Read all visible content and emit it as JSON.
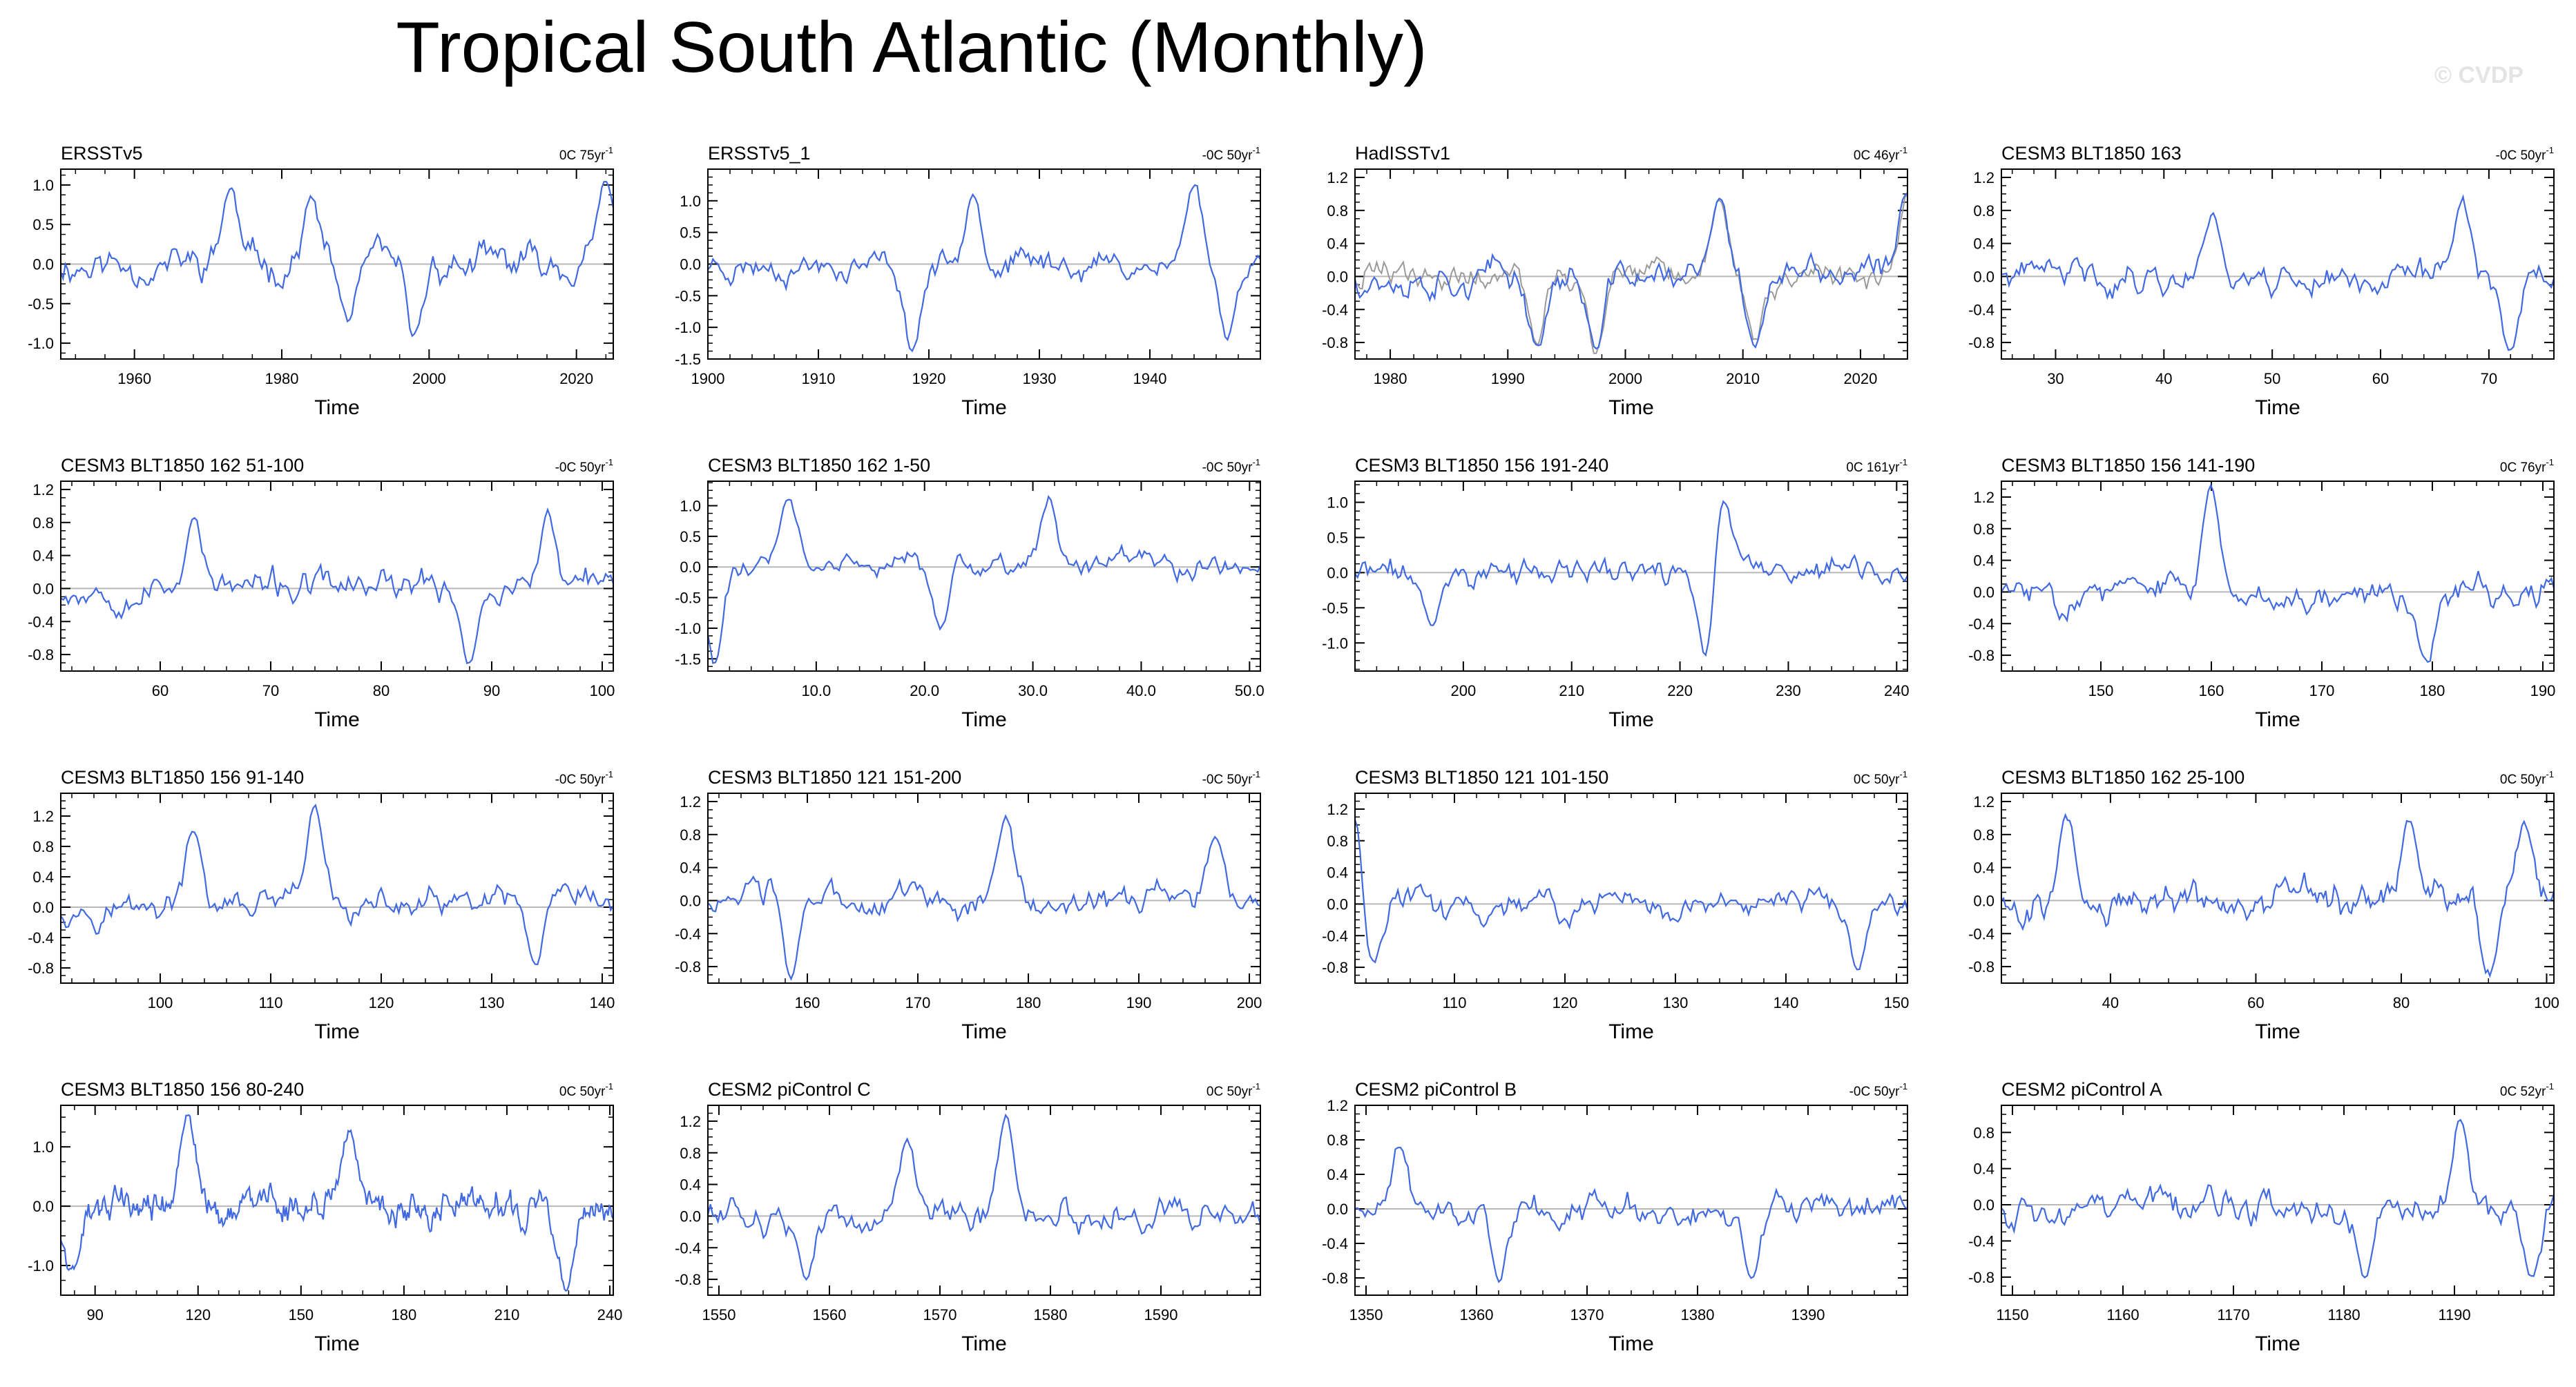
{
  "page": {
    "title": "Tropical South Atlantic (Monthly)",
    "watermark": "© CVDP"
  },
  "colors": {
    "line": "#4169e1",
    "obs_overlay": "#9a9a9a",
    "axis": "#000000",
    "zero_line": "#b8b8b8"
  },
  "chart_data": [
    {
      "type": "line",
      "title": "ERSSTv5",
      "trend": "0C 75yr",
      "xlabel": "Time",
      "xlim": [
        1950,
        2025
      ],
      "ylim": [
        -1.2,
        1.2
      ],
      "xticks": [
        1960,
        1980,
        2000,
        2020
      ],
      "yticks": [
        -1.0,
        -0.5,
        0.0,
        0.5,
        1.0
      ],
      "ytick_labels": [
        "-1.0",
        "-0.5",
        "0.0",
        "0.5",
        "1.0"
      ],
      "amplitude": 0.4,
      "points": 240,
      "seed": 11,
      "features": [
        [
          1973,
          0.95
        ],
        [
          1984,
          0.8
        ],
        [
          1989,
          -0.7
        ],
        [
          1998,
          -0.95
        ],
        [
          2024,
          1.0
        ]
      ]
    },
    {
      "type": "line",
      "title": "ERSSTv5_1",
      "trend": "-0C 50yr",
      "xlabel": "Time",
      "xlim": [
        1900,
        1950
      ],
      "ylim": [
        -1.5,
        1.5
      ],
      "xticks": [
        1900,
        1910,
        1920,
        1930,
        1940
      ],
      "yticks": [
        -1.5,
        -1.0,
        -0.5,
        0.0,
        0.5,
        1.0
      ],
      "ytick_labels": [
        "-1.5",
        "-1.0",
        "-0.5",
        "0.0",
        "0.5",
        "1.0"
      ],
      "amplitude": 0.4,
      "points": 220,
      "seed": 23,
      "features": [
        [
          1918.5,
          -1.35
        ],
        [
          1924,
          1.25
        ],
        [
          1944,
          1.3
        ],
        [
          1947,
          -1.1
        ]
      ]
    },
    {
      "type": "line",
      "title": "HadISSTv1",
      "trend": "0C 46yr",
      "xlabel": "Time",
      "xlim": [
        1977,
        2024
      ],
      "ylim": [
        -1.0,
        1.3
      ],
      "xticks": [
        1980,
        1990,
        2000,
        2010,
        2020
      ],
      "yticks": [
        -0.8,
        -0.4,
        0.0,
        0.4,
        0.8,
        1.2
      ],
      "ytick_labels": [
        "-0.8",
        "-0.4",
        "0.0",
        "0.4",
        "0.8",
        "1.2"
      ],
      "amplitude": 0.35,
      "points": 230,
      "seed": 37,
      "overlay": true,
      "features": [
        [
          1992.5,
          -0.85
        ],
        [
          1997.5,
          -0.9
        ],
        [
          2008,
          0.9
        ],
        [
          2011,
          -0.8
        ],
        [
          2024,
          1.05
        ]
      ]
    },
    {
      "type": "line",
      "title": "CESM3 BLT1850 163",
      "trend": "-0C 50yr",
      "xlabel": "Time",
      "xlim": [
        25,
        76
      ],
      "ylim": [
        -1.0,
        1.3
      ],
      "xticks": [
        30,
        40,
        50,
        60,
        70
      ],
      "yticks": [
        -0.8,
        -0.4,
        0.0,
        0.4,
        0.8,
        1.2
      ],
      "ytick_labels": [
        "-0.8",
        "-0.4",
        "0.0",
        "0.4",
        "0.8",
        "1.2"
      ],
      "amplitude": 0.35,
      "points": 220,
      "seed": 41,
      "features": [
        [
          44.5,
          0.8
        ],
        [
          67.5,
          1.0
        ],
        [
          72,
          -0.85
        ]
      ]
    },
    {
      "type": "line",
      "title": "CESM3 BLT1850 162 51-100",
      "trend": "-0C 50yr",
      "xlabel": "Time",
      "xlim": [
        51,
        101
      ],
      "ylim": [
        -1.0,
        1.3
      ],
      "xticks": [
        60,
        70,
        80,
        90,
        100
      ],
      "yticks": [
        -0.8,
        -0.4,
        0.0,
        0.4,
        0.8,
        1.2
      ],
      "ytick_labels": [
        "-0.8",
        "-0.4",
        "0.0",
        "0.4",
        "0.8",
        "1.2"
      ],
      "amplitude": 0.35,
      "points": 220,
      "seed": 53,
      "features": [
        [
          63,
          0.9
        ],
        [
          88,
          -0.85
        ],
        [
          95,
          0.9
        ]
      ]
    },
    {
      "type": "line",
      "title": "CESM3 BLT1850 162 1-50",
      "trend": "-0C 50yr",
      "xlabel": "Time",
      "xlim": [
        0,
        51
      ],
      "ylim": [
        -1.7,
        1.4
      ],
      "xticks": [
        10,
        20,
        30,
        40,
        50
      ],
      "yticks": [
        -1.5,
        -1.0,
        -0.5,
        0.0,
        0.5,
        1.0
      ],
      "ytick_labels": [
        "-1.5",
        "-1.0",
        "-0.5",
        "0.0",
        "0.5",
        "1.0"
      ],
      "xtick_labels": [
        "10.0",
        "20.0",
        "30.0",
        "40.0",
        "50.0"
      ],
      "amplitude": 0.35,
      "points": 220,
      "seed": 61,
      "features": [
        [
          0.6,
          -1.55
        ],
        [
          7.5,
          1.1
        ],
        [
          31.5,
          1.15
        ],
        [
          21.5,
          -1.0
        ]
      ]
    },
    {
      "type": "line",
      "title": "CESM3 BLT1850 156 191-240",
      "trend": "0C 161yr",
      "xlabel": "Time",
      "xlim": [
        190,
        241
      ],
      "ylim": [
        -1.4,
        1.3
      ],
      "xticks": [
        200,
        210,
        220,
        230,
        240
      ],
      "yticks": [
        -1.0,
        -0.5,
        0.0,
        0.5,
        1.0
      ],
      "ytick_labels": [
        "-1.0",
        "-0.5",
        "0.0",
        "0.5",
        "1.0"
      ],
      "amplitude": 0.35,
      "points": 220,
      "seed": 71,
      "features": [
        [
          222.5,
          -1.3
        ],
        [
          224,
          1.1
        ],
        [
          197,
          -0.75
        ]
      ]
    },
    {
      "type": "line",
      "title": "CESM3 BLT1850 156 141-190",
      "trend": "0C 76yr",
      "xlabel": "Time",
      "xlim": [
        141,
        191
      ],
      "ylim": [
        -1.0,
        1.4
      ],
      "xticks": [
        150,
        160,
        170,
        180,
        190
      ],
      "yticks": [
        -0.8,
        -0.4,
        0.0,
        0.4,
        0.8,
        1.2
      ],
      "ytick_labels": [
        "-0.8",
        "-0.4",
        "0.0",
        "0.4",
        "0.8",
        "1.2"
      ],
      "amplitude": 0.35,
      "points": 220,
      "seed": 83,
      "features": [
        [
          160,
          1.3
        ],
        [
          179.5,
          -0.9
        ]
      ]
    },
    {
      "type": "line",
      "title": "CESM3 BLT1850 156 91-140",
      "trend": "-0C 50yr",
      "xlabel": "Time",
      "xlim": [
        91,
        141
      ],
      "ylim": [
        -1.0,
        1.5
      ],
      "xticks": [
        100,
        110,
        120,
        130,
        140
      ],
      "yticks": [
        -0.8,
        -0.4,
        0.0,
        0.4,
        0.8,
        1.2
      ],
      "ytick_labels": [
        "-0.8",
        "-0.4",
        "0.0",
        "0.4",
        "0.8",
        "1.2"
      ],
      "amplitude": 0.35,
      "points": 220,
      "seed": 97,
      "features": [
        [
          114,
          1.3
        ],
        [
          103,
          0.95
        ],
        [
          134,
          -0.8
        ]
      ]
    },
    {
      "type": "line",
      "title": "CESM3 BLT1850 121 151-200",
      "trend": "-0C 50yr",
      "xlabel": "Time",
      "xlim": [
        151,
        201
      ],
      "ylim": [
        -1.0,
        1.3
      ],
      "xticks": [
        160,
        170,
        180,
        190,
        200
      ],
      "yticks": [
        -0.8,
        -0.4,
        0.0,
        0.4,
        0.8,
        1.2
      ],
      "ytick_labels": [
        "-0.8",
        "-0.4",
        "0.0",
        "0.4",
        "0.8",
        "1.2"
      ],
      "amplitude": 0.33,
      "points": 220,
      "seed": 103,
      "features": [
        [
          158.5,
          -0.95
        ],
        [
          178,
          0.95
        ],
        [
          197,
          0.75
        ]
      ]
    },
    {
      "type": "line",
      "title": "CESM3 BLT1850 121 101-150",
      "trend": "0C 50yr",
      "xlabel": "Time",
      "xlim": [
        101,
        151
      ],
      "ylim": [
        -1.0,
        1.4
      ],
      "xticks": [
        110,
        120,
        130,
        140,
        150
      ],
      "yticks": [
        -0.8,
        -0.4,
        0.0,
        0.4,
        0.8,
        1.2
      ],
      "ytick_labels": [
        "-0.8",
        "-0.4",
        "0.0",
        "0.4",
        "0.8",
        "1.2"
      ],
      "amplitude": 0.33,
      "points": 220,
      "seed": 113,
      "features": [
        [
          101.2,
          1.3
        ],
        [
          102.5,
          -0.8
        ],
        [
          146.5,
          -0.8
        ]
      ]
    },
    {
      "type": "line",
      "title": "CESM3 BLT1850 162 25-100",
      "trend": "0C 50yr",
      "xlabel": "Time",
      "xlim": [
        25,
        101
      ],
      "ylim": [
        -1.0,
        1.3
      ],
      "xticks": [
        40,
        60,
        80,
        100
      ],
      "yticks": [
        -0.8,
        -0.4,
        0.0,
        0.4,
        0.8,
        1.2
      ],
      "ytick_labels": [
        "-0.8",
        "-0.4",
        "0.0",
        "0.4",
        "0.8",
        "1.2"
      ],
      "amplitude": 0.38,
      "points": 260,
      "seed": 127,
      "features": [
        [
          34,
          1.0
        ],
        [
          81,
          1.0
        ],
        [
          92,
          -0.85
        ],
        [
          97,
          1.0
        ]
      ]
    },
    {
      "type": "line",
      "title": "CESM3 BLT1850 156 80-240",
      "trend": "0C 50yr",
      "xlabel": "Time",
      "xlim": [
        80,
        241
      ],
      "ylim": [
        -1.5,
        1.7
      ],
      "xticks": [
        90,
        120,
        150,
        180,
        210,
        240
      ],
      "yticks": [
        -1.0,
        0.0,
        1.0
      ],
      "ytick_labels": [
        "-1.0",
        "0.0",
        "1.0"
      ],
      "amplitude": 0.5,
      "points": 420,
      "seed": 131,
      "features": [
        [
          117,
          1.45
        ],
        [
          164,
          1.3
        ],
        [
          227,
          -1.3
        ],
        [
          83,
          -1.1
        ]
      ]
    },
    {
      "type": "line",
      "title": "CESM2 piControl C",
      "trend": "0C 50yr",
      "xlabel": "Time",
      "xlim": [
        1549,
        1599
      ],
      "ylim": [
        -1.0,
        1.4
      ],
      "xticks": [
        1550,
        1560,
        1570,
        1580,
        1590
      ],
      "yticks": [
        -0.8,
        -0.4,
        0.0,
        0.4,
        0.8,
        1.2
      ],
      "ytick_labels": [
        "-0.8",
        "-0.4",
        "0.0",
        "0.4",
        "0.8",
        "1.2"
      ],
      "amplitude": 0.35,
      "points": 220,
      "seed": 139,
      "features": [
        [
          1576,
          1.3
        ],
        [
          1567,
          0.95
        ],
        [
          1558,
          -0.8
        ]
      ]
    },
    {
      "type": "line",
      "title": "CESM2 piControl B",
      "trend": "-0C 50yr",
      "xlabel": "Time",
      "xlim": [
        1349,
        1399
      ],
      "ylim": [
        -1.0,
        1.2
      ],
      "xticks": [
        1350,
        1360,
        1370,
        1380,
        1390
      ],
      "yticks": [
        -0.8,
        -0.4,
        0.0,
        0.4,
        0.8,
        1.2
      ],
      "ytick_labels": [
        "-0.8",
        "-0.4",
        "0.0",
        "0.4",
        "0.8",
        "1.2"
      ],
      "amplitude": 0.33,
      "points": 220,
      "seed": 149,
      "features": [
        [
          1353,
          0.75
        ],
        [
          1385,
          -0.8
        ],
        [
          1362,
          -0.75
        ]
      ]
    },
    {
      "type": "line",
      "title": "CESM2 piControl A",
      "trend": "0C 52yr",
      "xlabel": "Time",
      "xlim": [
        1149,
        1199
      ],
      "ylim": [
        -1.0,
        1.1
      ],
      "xticks": [
        1150,
        1160,
        1170,
        1180,
        1190
      ],
      "yticks": [
        -0.8,
        -0.4,
        0.0,
        0.4,
        0.8
      ],
      "ytick_labels": [
        "-0.8",
        "-0.4",
        "0.0",
        "0.4",
        "0.8"
      ],
      "amplitude": 0.33,
      "points": 220,
      "seed": 157,
      "features": [
        [
          1190.5,
          0.95
        ],
        [
          1182,
          -0.8
        ],
        [
          1197,
          -0.8
        ]
      ]
    }
  ]
}
